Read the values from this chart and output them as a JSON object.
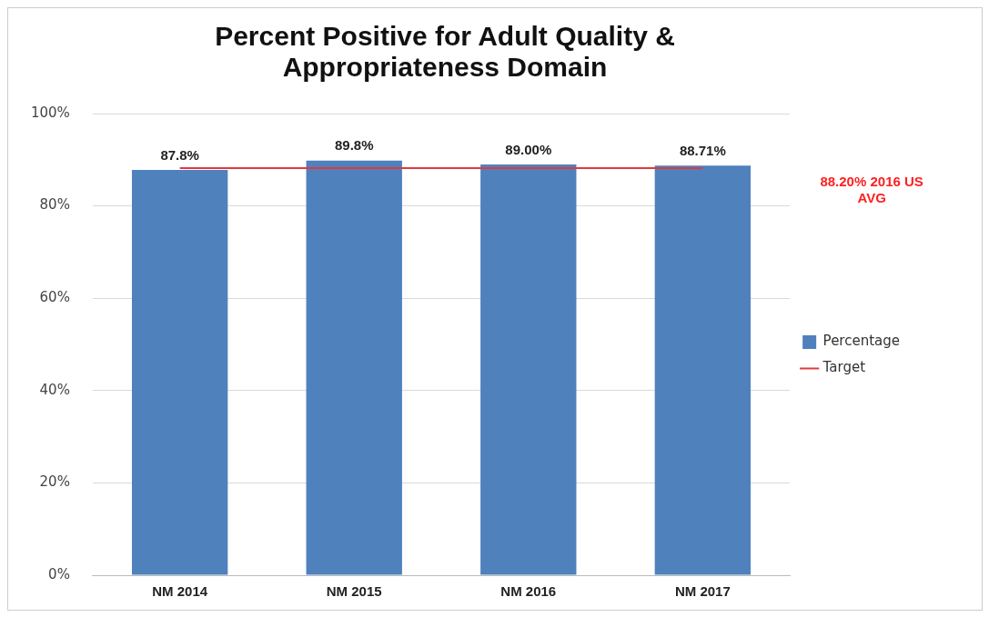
{
  "chart_data": {
    "type": "bar",
    "title": "Percent Positive for Adult Quality & Appropriateness Domain",
    "categories": [
      "NM 2014",
      "NM 2015",
      "NM 2016",
      "NM 2017"
    ],
    "series": [
      {
        "name": "Percentage",
        "color": "#4f81bd",
        "values": [
          87.8,
          89.8,
          89.0,
          88.71
        ],
        "value_labels": [
          "87.8%",
          "89.8%",
          "89.00%",
          "88.71%"
        ]
      },
      {
        "name": "Target",
        "type": "line",
        "color": "#e0393e",
        "values": [
          88.2,
          88.2,
          88.2,
          88.2
        ],
        "marker": "none"
      }
    ],
    "annotations": [
      "88.20% 2016 US AVG"
    ],
    "ylim": [
      0,
      100
    ],
    "yticks": [
      {
        "value": 0,
        "label": "0%"
      },
      {
        "value": 20,
        "label": "20%"
      },
      {
        "value": 40,
        "label": "40%"
      },
      {
        "value": 60,
        "label": "60%"
      },
      {
        "value": 80,
        "label": "80%"
      },
      {
        "value": 100,
        "label": "100%"
      }
    ],
    "grid": "y",
    "legend": "right"
  }
}
